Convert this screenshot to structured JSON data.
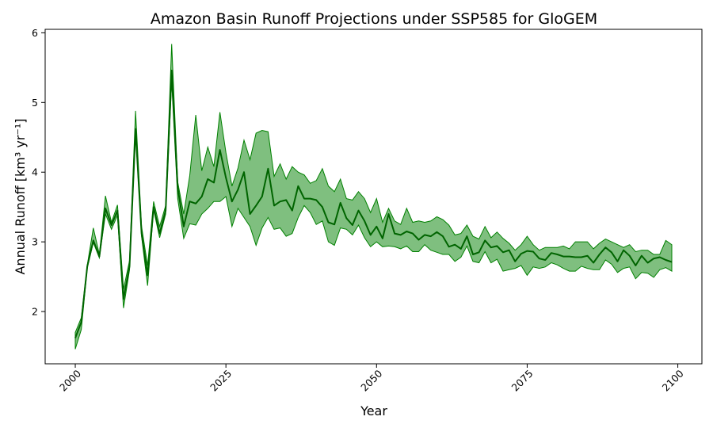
{
  "chart_data": {
    "type": "area",
    "title": "Amazon Basin Runoff Projections under SSP585 for GloGEM",
    "xlabel": "Year",
    "ylabel": "Annual Runoff [km³ yr⁻¹]",
    "xlim": [
      1995,
      2104
    ],
    "ylim": [
      1.25,
      6.05
    ],
    "xticks": [
      2000,
      2025,
      2050,
      2075,
      2100
    ],
    "yticks": [
      2,
      3,
      4,
      5,
      6
    ],
    "grid": false,
    "legend": "none",
    "colors": {
      "line": "#006400",
      "band": "#008000",
      "band_opacity": 0.5
    },
    "x": [
      2000,
      2001,
      2002,
      2003,
      2004,
      2005,
      2006,
      2007,
      2008,
      2009,
      2010,
      2011,
      2012,
      2013,
      2014,
      2015,
      2016,
      2017,
      2018,
      2019,
      2020,
      2021,
      2022,
      2023,
      2024,
      2025,
      2026,
      2027,
      2028,
      2029,
      2030,
      2031,
      2032,
      2033,
      2034,
      2035,
      2036,
      2037,
      2038,
      2039,
      2040,
      2041,
      2042,
      2043,
      2044,
      2045,
      2046,
      2047,
      2048,
      2049,
      2050,
      2051,
      2052,
      2053,
      2054,
      2055,
      2056,
      2057,
      2058,
      2059,
      2060,
      2061,
      2062,
      2063,
      2064,
      2065,
      2066,
      2067,
      2068,
      2069,
      2070,
      2071,
      2072,
      2073,
      2074,
      2075,
      2076,
      2077,
      2078,
      2079,
      2080,
      2081,
      2082,
      2083,
      2084,
      2085,
      2086,
      2087,
      2088,
      2089,
      2090,
      2091,
      2092,
      2093,
      2094,
      2095,
      2096,
      2097,
      2098,
      2099
    ],
    "series": [
      {
        "name": "",
        "mean": [
          1.62,
          1.85,
          2.65,
          3.02,
          2.79,
          3.48,
          3.24,
          3.45,
          2.18,
          2.65,
          4.62,
          3.12,
          2.52,
          3.5,
          3.12,
          3.45,
          5.46,
          3.78,
          3.22,
          3.58,
          3.55,
          3.65,
          3.9,
          3.85,
          4.32,
          3.92,
          3.58,
          3.75,
          4.0,
          3.4,
          3.52,
          3.65,
          4.05,
          3.52,
          3.58,
          3.6,
          3.45,
          3.8,
          3.62,
          3.62,
          3.6,
          3.5,
          3.28,
          3.25,
          3.56,
          3.34,
          3.24,
          3.45,
          3.3,
          3.1,
          3.22,
          3.05,
          3.4,
          3.12,
          3.1,
          3.15,
          3.12,
          3.03,
          3.1,
          3.08,
          3.14,
          3.08,
          2.93,
          2.96,
          2.9,
          3.08,
          2.82,
          2.85,
          3.02,
          2.92,
          2.94,
          2.85,
          2.88,
          2.72,
          2.83,
          2.87,
          2.86,
          2.76,
          2.74,
          2.84,
          2.82,
          2.79,
          2.79,
          2.78,
          2.78,
          2.8,
          2.7,
          2.82,
          2.92,
          2.85,
          2.72,
          2.88,
          2.8,
          2.66,
          2.8,
          2.7,
          2.76,
          2.78,
          2.74,
          2.71
        ],
        "lower": [
          1.46,
          1.74,
          2.63,
          2.99,
          2.77,
          3.4,
          3.18,
          3.38,
          2.05,
          2.6,
          4.58,
          3.08,
          2.37,
          3.46,
          3.06,
          3.4,
          5.3,
          3.62,
          3.05,
          3.26,
          3.24,
          3.4,
          3.48,
          3.58,
          3.58,
          3.65,
          3.22,
          3.48,
          3.35,
          3.22,
          2.95,
          3.2,
          3.35,
          3.18,
          3.2,
          3.08,
          3.12,
          3.35,
          3.52,
          3.42,
          3.25,
          3.3,
          3.0,
          2.95,
          3.2,
          3.18,
          3.1,
          3.24,
          3.06,
          2.93,
          3.0,
          2.93,
          2.94,
          2.93,
          2.9,
          2.94,
          2.86,
          2.86,
          2.96,
          2.88,
          2.85,
          2.82,
          2.82,
          2.72,
          2.78,
          2.94,
          2.72,
          2.7,
          2.86,
          2.7,
          2.75,
          2.58,
          2.6,
          2.62,
          2.66,
          2.52,
          2.64,
          2.62,
          2.64,
          2.7,
          2.67,
          2.62,
          2.58,
          2.58,
          2.65,
          2.62,
          2.6,
          2.6,
          2.74,
          2.68,
          2.56,
          2.62,
          2.64,
          2.47,
          2.56,
          2.55,
          2.49,
          2.6,
          2.63,
          2.58
        ],
        "upper": [
          1.7,
          1.91,
          2.67,
          3.2,
          2.82,
          3.66,
          3.28,
          3.53,
          2.32,
          2.73,
          4.88,
          3.22,
          2.66,
          3.58,
          3.22,
          3.52,
          5.84,
          3.86,
          3.4,
          3.95,
          4.82,
          4.02,
          4.36,
          4.08,
          4.86,
          4.28,
          3.8,
          4.06,
          4.46,
          4.18,
          4.56,
          4.6,
          4.58,
          3.94,
          4.12,
          3.9,
          4.08,
          4.0,
          3.96,
          3.84,
          3.88,
          4.05,
          3.8,
          3.72,
          3.9,
          3.62,
          3.6,
          3.72,
          3.62,
          3.42,
          3.62,
          3.28,
          3.48,
          3.3,
          3.25,
          3.48,
          3.28,
          3.3,
          3.28,
          3.3,
          3.36,
          3.32,
          3.24,
          3.1,
          3.12,
          3.24,
          3.08,
          3.04,
          3.22,
          3.06,
          3.14,
          3.05,
          2.98,
          2.88,
          2.96,
          3.08,
          2.96,
          2.88,
          2.92,
          2.92,
          2.92,
          2.94,
          2.9,
          3.0,
          3.0,
          3.0,
          2.9,
          2.98,
          3.04,
          3.0,
          2.96,
          2.92,
          2.96,
          2.86,
          2.88,
          2.88,
          2.82,
          2.82,
          3.02,
          2.96
        ]
      }
    ]
  }
}
